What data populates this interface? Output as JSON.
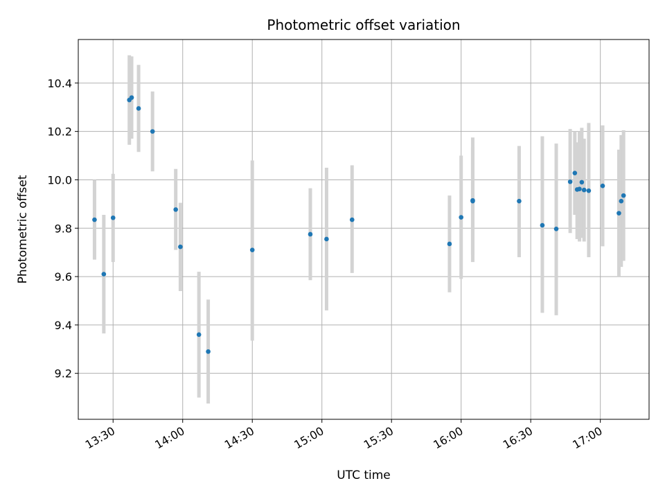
{
  "chart_data": {
    "type": "scatter",
    "title": "Photometric offset variation",
    "xlabel": "UTC time",
    "ylabel": "Photometric offset",
    "grid": true,
    "xlim": [
      "13:15",
      "17:21"
    ],
    "ylim": [
      9.01,
      10.58
    ],
    "x_ticks": [
      "13:30",
      "14:00",
      "14:30",
      "15:00",
      "15:30",
      "16:00",
      "16:30",
      "17:00"
    ],
    "y_ticks": [
      "9.2",
      "9.4",
      "9.6",
      "9.8",
      "10.0",
      "10.2",
      "10.4"
    ],
    "colors": {
      "point": "#1f77b4",
      "errorbar": "#d3d3d3",
      "grid": "#b0b0b0"
    },
    "points": [
      {
        "x": "13:22",
        "y": 9.835,
        "ylow": 9.67,
        "yhigh": 10.0
      },
      {
        "x": "13:26",
        "y": 9.61,
        "ylow": 9.365,
        "yhigh": 9.855
      },
      {
        "x": "13:30",
        "y": 9.843,
        "ylow": 9.66,
        "yhigh": 10.025
      },
      {
        "x": "13:37",
        "y": 10.33,
        "ylow": 10.145,
        "yhigh": 10.515
      },
      {
        "x": "13:38",
        "y": 10.34,
        "ylow": 10.17,
        "yhigh": 10.51
      },
      {
        "x": "13:41",
        "y": 10.295,
        "ylow": 10.115,
        "yhigh": 10.475
      },
      {
        "x": "13:47",
        "y": 10.2,
        "ylow": 10.035,
        "yhigh": 10.365
      },
      {
        "x": "13:57",
        "y": 9.877,
        "ylow": 9.71,
        "yhigh": 10.045
      },
      {
        "x": "13:59",
        "y": 9.723,
        "ylow": 9.54,
        "yhigh": 9.905
      },
      {
        "x": "14:07",
        "y": 9.36,
        "ylow": 9.1,
        "yhigh": 9.62
      },
      {
        "x": "14:11",
        "y": 9.29,
        "ylow": 9.075,
        "yhigh": 9.505
      },
      {
        "x": "14:30",
        "y": 9.71,
        "ylow": 9.335,
        "yhigh": 10.08
      },
      {
        "x": "14:55",
        "y": 9.775,
        "ylow": 9.585,
        "yhigh": 9.965
      },
      {
        "x": "15:02",
        "y": 9.755,
        "ylow": 9.46,
        "yhigh": 10.05
      },
      {
        "x": "15:13",
        "y": 9.835,
        "ylow": 9.615,
        "yhigh": 10.06
      },
      {
        "x": "15:55",
        "y": 9.735,
        "ylow": 9.535,
        "yhigh": 9.935
      },
      {
        "x": "16:00",
        "y": 9.845,
        "ylow": 9.59,
        "yhigh": 10.1
      },
      {
        "x": "16:05",
        "y": 9.912,
        "ylow": 9.66,
        "yhigh": 10.135
      },
      {
        "x": "16:05",
        "y": 9.915,
        "ylow": 9.69,
        "yhigh": 10.175
      },
      {
        "x": "16:25",
        "y": 9.912,
        "ylow": 9.68,
        "yhigh": 10.14
      },
      {
        "x": "16:35",
        "y": 9.812,
        "ylow": 9.45,
        "yhigh": 10.18
      },
      {
        "x": "16:41",
        "y": 9.797,
        "ylow": 9.44,
        "yhigh": 10.15
      },
      {
        "x": "16:47",
        "y": 9.992,
        "ylow": 9.78,
        "yhigh": 10.21
      },
      {
        "x": "16:49",
        "y": 10.028,
        "ylow": 9.855,
        "yhigh": 10.2
      },
      {
        "x": "16:50",
        "y": 9.96,
        "ylow": 9.755,
        "yhigh": 10.155
      },
      {
        "x": "16:51",
        "y": 9.962,
        "ylow": 9.745,
        "yhigh": 10.2
      },
      {
        "x": "16:52",
        "y": 9.99,
        "ylow": 9.76,
        "yhigh": 10.215
      },
      {
        "x": "16:53",
        "y": 9.958,
        "ylow": 9.745,
        "yhigh": 10.17
      },
      {
        "x": "16:55",
        "y": 9.955,
        "ylow": 9.68,
        "yhigh": 10.235
      },
      {
        "x": "17:01",
        "y": 9.975,
        "ylow": 9.725,
        "yhigh": 10.225
      },
      {
        "x": "17:08",
        "y": 9.862,
        "ylow": 9.6,
        "yhigh": 10.125
      },
      {
        "x": "17:09",
        "y": 9.912,
        "ylow": 9.64,
        "yhigh": 10.185
      },
      {
        "x": "17:10",
        "y": 9.935,
        "ylow": 9.665,
        "yhigh": 10.205
      }
    ]
  }
}
